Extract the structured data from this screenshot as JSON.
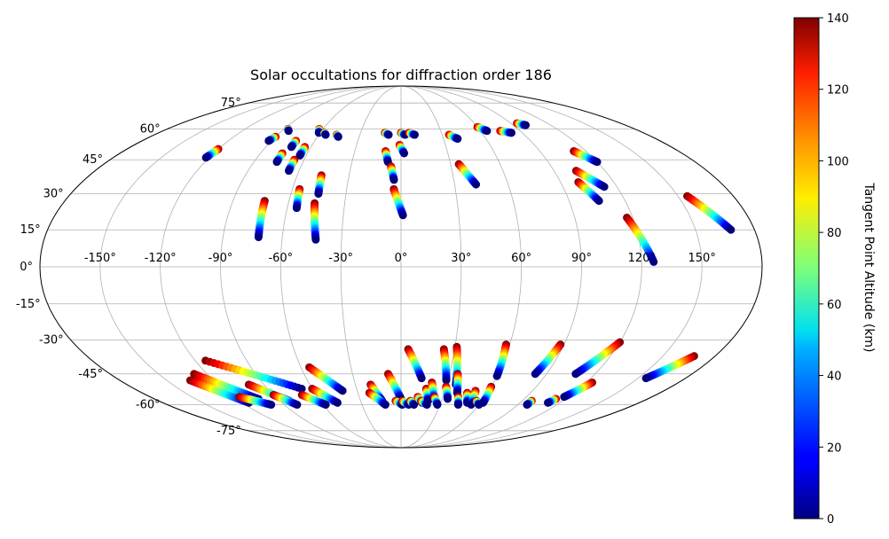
{
  "chart_data": {
    "type": "scatter",
    "projection": "mollweide",
    "title": "Solar occultations for diffraction order 186",
    "x_ticks": [
      "-150°",
      "-120°",
      "-90°",
      "-60°",
      "-30°",
      "0°",
      "30°",
      "60°",
      "90°",
      "120°",
      "150°"
    ],
    "x_tick_values": [
      -150,
      -120,
      -90,
      -60,
      -30,
      0,
      30,
      60,
      90,
      120,
      150
    ],
    "y_ticks": [
      "-75°",
      "-60°",
      "-45°",
      "-30°",
      "-15°",
      "0°",
      "15°",
      "30°",
      "45°",
      "60°",
      "75°"
    ],
    "y_tick_values": [
      -75,
      -60,
      -45,
      -30,
      -15,
      0,
      15,
      30,
      45,
      60,
      75
    ],
    "grid": true,
    "colorbar": {
      "label": "Tangent Point Altitude (km)",
      "range": [
        0,
        140
      ],
      "ticks": [
        "0",
        "20",
        "40",
        "60",
        "80",
        "100",
        "120",
        "140"
      ],
      "tick_values": [
        0,
        20,
        40,
        60,
        80,
        100,
        120,
        140
      ],
      "colormap": "jet"
    },
    "tracks": [
      {
        "lon0": -120,
        "lat0": 50,
        "lon1": -122,
        "lat1": 46
      },
      {
        "lon0": -87,
        "lat0": 60,
        "lon1": -85,
        "lat1": 59
      },
      {
        "lon0": -90,
        "lat0": 56,
        "lon1": -92,
        "lat1": 54
      },
      {
        "lon0": -63,
        "lat0": 60,
        "lon1": -61,
        "lat1": 58
      },
      {
        "lon0": -57,
        "lat0": 58,
        "lon1": -55,
        "lat1": 57
      },
      {
        "lon0": -47,
        "lat0": 57,
        "lon1": -45,
        "lat1": 56
      },
      {
        "lon0": -73,
        "lat0": 54,
        "lon1": -73,
        "lat1": 51
      },
      {
        "lon0": -76,
        "lat0": 48,
        "lon1": -76,
        "lat1": 44
      },
      {
        "lon0": -64,
        "lat0": 51,
        "lon1": -64,
        "lat1": 47
      },
      {
        "lon0": -66,
        "lat0": 45,
        "lon1": -66,
        "lat1": 40
      },
      {
        "lon0": -56,
        "lat0": 32,
        "lon1": -55,
        "lat1": 24
      },
      {
        "lon0": -46,
        "lat0": 38,
        "lon1": -45,
        "lat1": 30
      },
      {
        "lon0": -73,
        "lat0": 27,
        "lon1": -72,
        "lat1": 12
      },
      {
        "lon0": -46,
        "lat0": 26,
        "lon1": -43,
        "lat1": 11
      },
      {
        "lon0": -12,
        "lat0": 58,
        "lon1": -9,
        "lat1": 57
      },
      {
        "lon0": 0,
        "lat0": 58,
        "lon1": 3,
        "lat1": 57
      },
      {
        "lon0": 6,
        "lat0": 58,
        "lon1": 10,
        "lat1": 57
      },
      {
        "lon0": -10,
        "lat0": 49,
        "lon1": -8,
        "lat1": 44
      },
      {
        "lon0": -1,
        "lat0": 52,
        "lon1": 2,
        "lat1": 48
      },
      {
        "lon0": -6,
        "lat0": 42,
        "lon1": -4,
        "lat1": 36
      },
      {
        "lon0": -4,
        "lat0": 32,
        "lon1": 1,
        "lat1": 21
      },
      {
        "lon0": 35,
        "lat0": 57,
        "lon1": 40,
        "lat1": 55
      },
      {
        "lon0": 35,
        "lat0": 43,
        "lon1": 42,
        "lat1": 34
      },
      {
        "lon0": 60,
        "lat0": 61,
        "lon1": 65,
        "lat1": 59
      },
      {
        "lon0": 75,
        "lat0": 59,
        "lon1": 82,
        "lat1": 58
      },
      {
        "lon0": 95,
        "lat0": 63,
        "lon1": 100,
        "lat1": 62
      },
      {
        "lon0": 112,
        "lat0": 49,
        "lon1": 120,
        "lat1": 44
      },
      {
        "lon0": 103,
        "lat0": 40,
        "lon1": 113,
        "lat1": 33
      },
      {
        "lon0": 100,
        "lat0": 35,
        "lon1": 106,
        "lat1": 27
      },
      {
        "lon0": 117,
        "lat0": 20,
        "lon1": 126,
        "lat1": 2
      },
      {
        "lon0": 155,
        "lat0": 29,
        "lon1": 168,
        "lat1": 15
      },
      {
        "lon0": -114,
        "lat0": -39,
        "lon1": -67,
        "lat1": -52
      },
      {
        "lon0": -128,
        "lat0": -45,
        "lon1": -104,
        "lat1": -57
      },
      {
        "lon0": -135,
        "lat0": -48,
        "lon1": -115,
        "lat1": -59
      },
      {
        "lon0": -100,
        "lat0": -50,
        "lon1": -83,
        "lat1": -58
      },
      {
        "lon0": -116,
        "lat0": -56,
        "lon1": -100,
        "lat1": -60
      },
      {
        "lon0": -90,
        "lat0": -55,
        "lon1": -80,
        "lat1": -60
      },
      {
        "lon0": -60,
        "lat0": -52,
        "lon1": -48,
        "lat1": -59
      },
      {
        "lon0": -70,
        "lat0": -55,
        "lon1": -58,
        "lat1": -60
      },
      {
        "lon0": -55,
        "lat0": -42,
        "lon1": -40,
        "lat1": -53
      },
      {
        "lon0": -20,
        "lat0": -50,
        "lon1": -14,
        "lat1": -58
      },
      {
        "lon0": -22,
        "lat0": -54,
        "lon1": -12,
        "lat1": -60
      },
      {
        "lon0": -8,
        "lat0": -45,
        "lon1": 0,
        "lat1": -57
      },
      {
        "lon0": 4,
        "lat0": -34,
        "lon1": 13,
        "lat1": -47
      },
      {
        "lon0": -4,
        "lat0": -58,
        "lon1": 1,
        "lat1": -60
      },
      {
        "lon0": 1,
        "lat0": -58,
        "lon1": 6,
        "lat1": -60
      },
      {
        "lon0": 7,
        "lat0": -58,
        "lon1": 10,
        "lat1": -60
      },
      {
        "lon0": 12,
        "lat0": -56,
        "lon1": 16,
        "lat1": -59
      },
      {
        "lon0": 15,
        "lat0": -58,
        "lon1": 20,
        "lat1": -60
      },
      {
        "lon0": 17,
        "lat0": -52,
        "lon1": 20,
        "lat1": -58
      },
      {
        "lon0": 24,
        "lat0": -34,
        "lon1": 29,
        "lat1": -48
      },
      {
        "lon0": 20,
        "lat0": -49,
        "lon1": 24,
        "lat1": -57
      },
      {
        "lon0": 24,
        "lat0": -56,
        "lon1": 28,
        "lat1": -60
      },
      {
        "lon0": 31,
        "lat0": -33,
        "lon1": 36,
        "lat1": -50
      },
      {
        "lon0": 30,
        "lat0": -51,
        "lon1": 34,
        "lat1": -57
      },
      {
        "lon0": 35,
        "lat0": -45,
        "lon1": 39,
        "lat1": -54
      },
      {
        "lon0": 41,
        "lat0": -56,
        "lon1": 44,
        "lat1": -60
      },
      {
        "lon0": 46,
        "lat0": -54,
        "lon1": 50,
        "lat1": -59
      },
      {
        "lon0": 51,
        "lat0": -53,
        "lon1": 54,
        "lat1": -60
      },
      {
        "lon0": 56,
        "lat0": -58,
        "lon1": 60,
        "lat1": -60
      },
      {
        "lon0": 60,
        "lat0": -51,
        "lon1": 62,
        "lat1": -59
      },
      {
        "lon0": 58,
        "lat0": -32,
        "lon1": 60,
        "lat1": -46
      },
      {
        "lon0": 88,
        "lat0": -32,
        "lon1": 83,
        "lat1": -45
      },
      {
        "lon0": 120,
        "lat0": -31,
        "lon1": 108,
        "lat1": -45
      },
      {
        "lon0": 124,
        "lat0": -49,
        "lon1": 117,
        "lat1": -56
      },
      {
        "lon0": 168,
        "lat0": -37,
        "lon1": 155,
        "lat1": -47
      },
      {
        "lon0": 97,
        "lat0": -58,
        "lon1": 97,
        "lat1": -60
      },
      {
        "lon0": 113,
        "lat0": -57,
        "lon1": 111,
        "lat1": -59
      }
    ]
  }
}
